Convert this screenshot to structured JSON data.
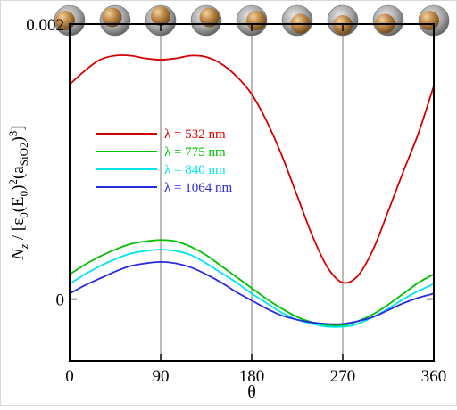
{
  "chart_data": {
    "type": "line",
    "title": "",
    "xlabel": "θ",
    "ylabel": {
      "pre": "N",
      "sub_z": "z",
      "mid1": " / [ε",
      "sub_0": "0",
      "mid2": "(E",
      "sub_0b": "0",
      "mid3": ")",
      "sup_2": "2",
      "mid4": "(a",
      "sub_sio2": "SiO2",
      "mid5": ")",
      "sup_3": "3",
      "end": "]"
    },
    "xlim": [
      0,
      360
    ],
    "ylim": [
      -0.00045,
      0.002
    ],
    "xticks": [
      "0",
      "90",
      "180",
      "270",
      "360"
    ],
    "yticks": [
      {
        "value": 0,
        "label": "0"
      },
      {
        "value": 0.002,
        "label": "0.002"
      }
    ],
    "grid": {
      "vertical_at": [
        90,
        180,
        270
      ],
      "horizontal_at": [
        0
      ]
    },
    "legend_position": "center-left",
    "x": [
      0,
      15,
      30,
      45,
      60,
      75,
      90,
      105,
      120,
      135,
      150,
      165,
      180,
      195,
      210,
      225,
      240,
      255,
      270,
      285,
      300,
      315,
      330,
      345,
      360
    ],
    "series": [
      {
        "name": "λ =  532 nm",
        "color": "#d40000",
        "values": [
          0.00156,
          0.00166,
          0.00174,
          0.00177,
          0.00177,
          0.00175,
          0.00174,
          0.00175,
          0.00177,
          0.00176,
          0.00171,
          0.00162,
          0.00149,
          0.00129,
          0.00104,
          0.00075,
          0.00046,
          0.00023,
          0.00012,
          0.00017,
          0.00036,
          0.00064,
          0.00093,
          0.00121,
          0.00155
        ]
      },
      {
        "name": "λ = 775 nm",
        "color": "#00c000",
        "values": [
          0.00018,
          0.00025,
          0.00031,
          0.00036,
          0.0004,
          0.00042,
          0.00043,
          0.00042,
          0.00038,
          0.00032,
          0.00024,
          0.00016,
          8e-05,
          0.0,
          -7e-05,
          -0.00013,
          -0.00017,
          -0.00019,
          -0.00019,
          -0.00016,
          -0.00011,
          -4e-05,
          4e-05,
          0.00012,
          0.00018
        ]
      },
      {
        "name": "λ = 840 nm",
        "color": "#00e5ee",
        "values": [
          0.00011,
          0.00018,
          0.00024,
          0.00029,
          0.00033,
          0.00035,
          0.00036,
          0.00035,
          0.00032,
          0.00026,
          0.00019,
          0.00012,
          4e-05,
          -3e-05,
          -0.0001,
          -0.00015,
          -0.00018,
          -0.0002,
          -0.0002,
          -0.00018,
          -0.00013,
          -7e-05,
          0.0,
          6e-05,
          0.00011
        ]
      },
      {
        "name": "λ = 1064 nm",
        "color": "#2a2ae0",
        "values": [
          4e-05,
          0.0001,
          0.00015,
          0.0002,
          0.00024,
          0.00026,
          0.00027,
          0.00026,
          0.00023,
          0.00018,
          0.00012,
          5e-05,
          -1e-05,
          -7e-05,
          -0.00012,
          -0.00015,
          -0.00017,
          -0.00018,
          -0.00018,
          -0.00016,
          -0.00013,
          -8e-05,
          -3e-05,
          1e-05,
          4e-05
        ]
      }
    ],
    "illustration": {
      "kind": "sphere-inside-shell",
      "shell_color": "#9a9a9a",
      "core_color": "#c08a4a",
      "count": 9
    }
  }
}
